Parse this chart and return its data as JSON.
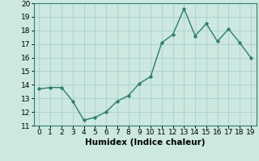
{
  "x": [
    0,
    1,
    2,
    3,
    4,
    5,
    6,
    7,
    8,
    9,
    10,
    11,
    12,
    13,
    14,
    15,
    16,
    17,
    18,
    19
  ],
  "y": [
    13.7,
    13.8,
    13.8,
    12.8,
    11.4,
    11.6,
    12.0,
    12.8,
    13.2,
    14.1,
    14.6,
    17.1,
    17.7,
    19.6,
    17.6,
    18.5,
    17.2,
    18.1,
    17.1,
    16.0
  ],
  "xlabel": "Humidex (Indice chaleur)",
  "ylim": [
    11,
    20
  ],
  "xlim": [
    -0.5,
    19.5
  ],
  "yticks": [
    11,
    12,
    13,
    14,
    15,
    16,
    17,
    18,
    19,
    20
  ],
  "xticks": [
    0,
    1,
    2,
    3,
    4,
    5,
    6,
    7,
    8,
    9,
    10,
    11,
    12,
    13,
    14,
    15,
    16,
    17,
    18,
    19
  ],
  "line_color": "#2e7d6e",
  "marker": "D",
  "marker_size": 1.8,
  "line_width": 1.0,
  "bg_color": "#cce8e0",
  "grid_color": "#aacfca",
  "xlabel_fontsize": 7.5,
  "tick_fontsize": 6.5
}
